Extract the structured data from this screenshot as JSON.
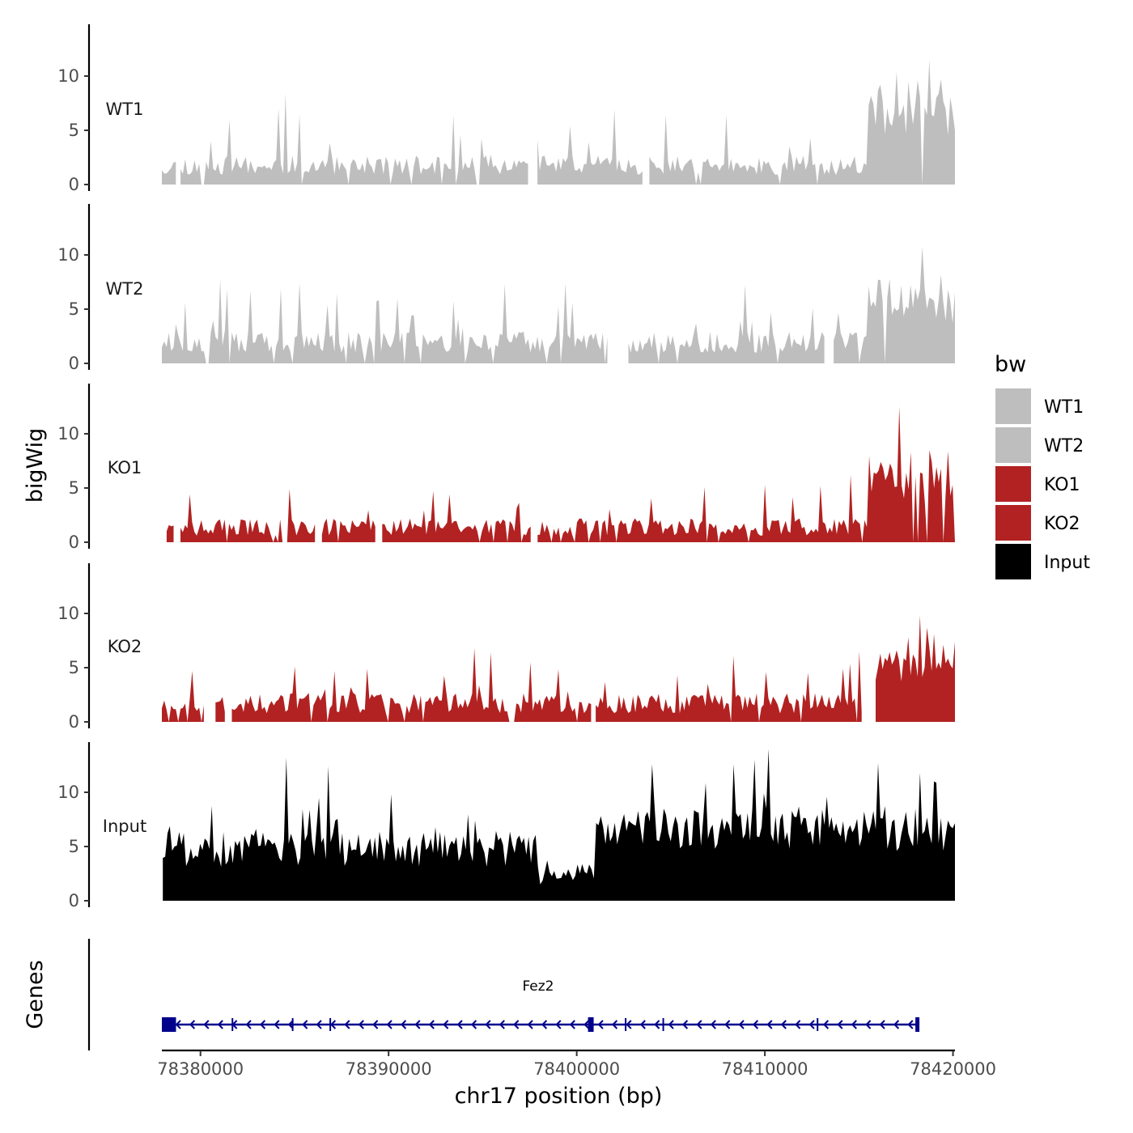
{
  "chart_data": {
    "type": "area",
    "genome_browser": true,
    "y_axis_title": "bigWig",
    "x_axis_title": "chr17 position (bp)",
    "genes_axis_title": "Genes",
    "x_range": [
      78377948,
      78420104
    ],
    "x_ticks": [
      78380000,
      78390000,
      78400000,
      78410000,
      78420000
    ],
    "x_tick_labels": [
      "78380000",
      "78390000",
      "78400000",
      "78410000",
      "78420000"
    ],
    "y_range": [
      0,
      14.7
    ],
    "y_ticks": [
      0,
      5,
      10
    ],
    "y_tick_labels": [
      "0",
      "5",
      "10"
    ],
    "legend": {
      "title": "bw",
      "entries": [
        {
          "label": "WT1",
          "color": "#bebebe"
        },
        {
          "label": "WT2",
          "color": "#bebebe"
        },
        {
          "label": "KO1",
          "color": "#b22222"
        },
        {
          "label": "KO2",
          "color": "#b22222"
        },
        {
          "label": "Input",
          "color": "#000000"
        }
      ]
    },
    "tracks": [
      {
        "name": "WT1",
        "color": "#bebebe",
        "start": 78377948,
        "end": 78420104,
        "seed": 11,
        "base": 1.6,
        "noise": 1.8,
        "spike_prob": 0.07,
        "spike_max": 5.5,
        "gap_prob": 0.05,
        "peaks": [
          {
            "pos": 78384500,
            "value": 8.4
          },
          {
            "pos": 78384100,
            "value": 7.0
          },
          {
            "pos": 78393500,
            "value": 6.4
          },
          {
            "pos": 78402000,
            "value": 6.9
          },
          {
            "pos": 78408000,
            "value": 6.4
          },
          {
            "pos": 78415500,
            "value": 7.3
          },
          {
            "pos": 78417000,
            "value": 10.4
          },
          {
            "pos": 78417600,
            "value": 9.5
          },
          {
            "pos": 78418700,
            "value": 11.5
          },
          {
            "pos": 78419400,
            "value": 9.7
          }
        ],
        "boost_region": [
          78415500,
          78420104
        ],
        "boost": 3.2,
        "gaps": [
          [
            78378800,
            78378850
          ],
          [
            78397450,
            78397900
          ],
          [
            78403500,
            78403750
          ]
        ]
      },
      {
        "name": "WT2",
        "color": "#bebebe",
        "start": 78377948,
        "end": 78420104,
        "seed": 23,
        "base": 1.8,
        "noise": 2.0,
        "spike_prob": 0.08,
        "spike_max": 5.0,
        "gap_prob": 0.05,
        "peaks": [
          {
            "pos": 78379200,
            "value": 5.6
          },
          {
            "pos": 78381400,
            "value": 6.8
          },
          {
            "pos": 78384300,
            "value": 6.9
          },
          {
            "pos": 78385300,
            "value": 7.4
          },
          {
            "pos": 78386800,
            "value": 5.4
          },
          {
            "pos": 78389500,
            "value": 5.8
          },
          {
            "pos": 78399000,
            "value": 5.2
          },
          {
            "pos": 78412500,
            "value": 5.1
          },
          {
            "pos": 78416000,
            "value": 7.7
          },
          {
            "pos": 78416600,
            "value": 7.8
          },
          {
            "pos": 78417200,
            "value": 7.2
          },
          {
            "pos": 78419700,
            "value": 6.8
          }
        ],
        "boost_region": [
          78415500,
          78420104
        ],
        "boost": 2.4,
        "gaps": [
          [
            78401700,
            78402700
          ],
          [
            78413200,
            78413600
          ]
        ]
      },
      {
        "name": "KO1",
        "color": "#b22222",
        "start": 78378200,
        "end": 78420104,
        "seed": 37,
        "base": 1.1,
        "noise": 1.6,
        "spike_prob": 0.06,
        "spike_max": 3.2,
        "gap_prob": 0.08,
        "peaks": [
          {
            "pos": 78384700,
            "value": 4.9
          },
          {
            "pos": 78393200,
            "value": 4.4
          },
          {
            "pos": 78406800,
            "value": 5.1
          },
          {
            "pos": 78410000,
            "value": 5.3
          },
          {
            "pos": 78413000,
            "value": 5.2
          },
          {
            "pos": 78414500,
            "value": 6.2
          },
          {
            "pos": 78416200,
            "value": 7.4
          },
          {
            "pos": 78417200,
            "value": 12.5
          },
          {
            "pos": 78417800,
            "value": 8.3
          },
          {
            "pos": 78418800,
            "value": 8.5
          },
          {
            "pos": 78419700,
            "value": 8.4
          }
        ],
        "boost_region": [
          78415500,
          78420104
        ],
        "boost": 2.6,
        "gaps": [
          [
            78378600,
            78378850
          ],
          [
            78386200,
            78386400
          ],
          [
            78389400,
            78389600
          ],
          [
            78397600,
            78397900
          ]
        ]
      },
      {
        "name": "KO2",
        "color": "#b22222",
        "start": 78377948,
        "end": 78420104,
        "seed": 53,
        "base": 1.4,
        "noise": 1.9,
        "spike_prob": 0.07,
        "spike_max": 3.6,
        "gap_prob": 0.06,
        "peaks": [
          {
            "pos": 78379500,
            "value": 4.7
          },
          {
            "pos": 78385000,
            "value": 5.1
          },
          {
            "pos": 78394600,
            "value": 6.8
          },
          {
            "pos": 78395400,
            "value": 6.4
          },
          {
            "pos": 78397500,
            "value": 5.5
          },
          {
            "pos": 78410000,
            "value": 4.6
          },
          {
            "pos": 78415000,
            "value": 6.5
          },
          {
            "pos": 78417600,
            "value": 7.8
          },
          {
            "pos": 78418200,
            "value": 9.8
          },
          {
            "pos": 78419000,
            "value": 8.1
          }
        ],
        "boost_region": [
          78415800,
          78420104
        ],
        "boost": 2.5,
        "gaps": [
          [
            78380300,
            78380700
          ],
          [
            78381300,
            78381600
          ],
          [
            78400800,
            78401000
          ],
          [
            78415200,
            78415800
          ]
        ]
      },
      {
        "name": "Input",
        "color": "#000000",
        "start": 78378000,
        "end": 78420104,
        "seed": 71,
        "base": 5.6,
        "noise": 3.3,
        "spike_prob": 0.1,
        "spike_max": 4.5,
        "gap_prob": 0.0,
        "peaks": [
          {
            "pos": 78384600,
            "value": 13.2
          },
          {
            "pos": 78386800,
            "value": 12.4
          },
          {
            "pos": 78404000,
            "value": 12.6
          },
          {
            "pos": 78408300,
            "value": 12.6
          },
          {
            "pos": 78409500,
            "value": 13.0
          },
          {
            "pos": 78410200,
            "value": 14.0
          },
          {
            "pos": 78416000,
            "value": 12.7
          },
          {
            "pos": 78418200,
            "value": 11.8
          }
        ],
        "boost_region": [
          78400000,
          78420104
        ],
        "boost": 1.2,
        "dip_region": [
          78398000,
          78401000
        ],
        "gaps": []
      }
    ],
    "gene_model": {
      "name": "Fez2",
      "strand": "-",
      "start": 78377948,
      "end": 78418200,
      "color": "#00008b",
      "exons": [
        [
          78377948,
          78378700
        ],
        [
          78400600,
          78400900
        ],
        [
          78418000,
          78418200
        ]
      ],
      "splice_marks": [
        78381700,
        78384900,
        78386900,
        78402600,
        78404600,
        78412800
      ]
    }
  }
}
